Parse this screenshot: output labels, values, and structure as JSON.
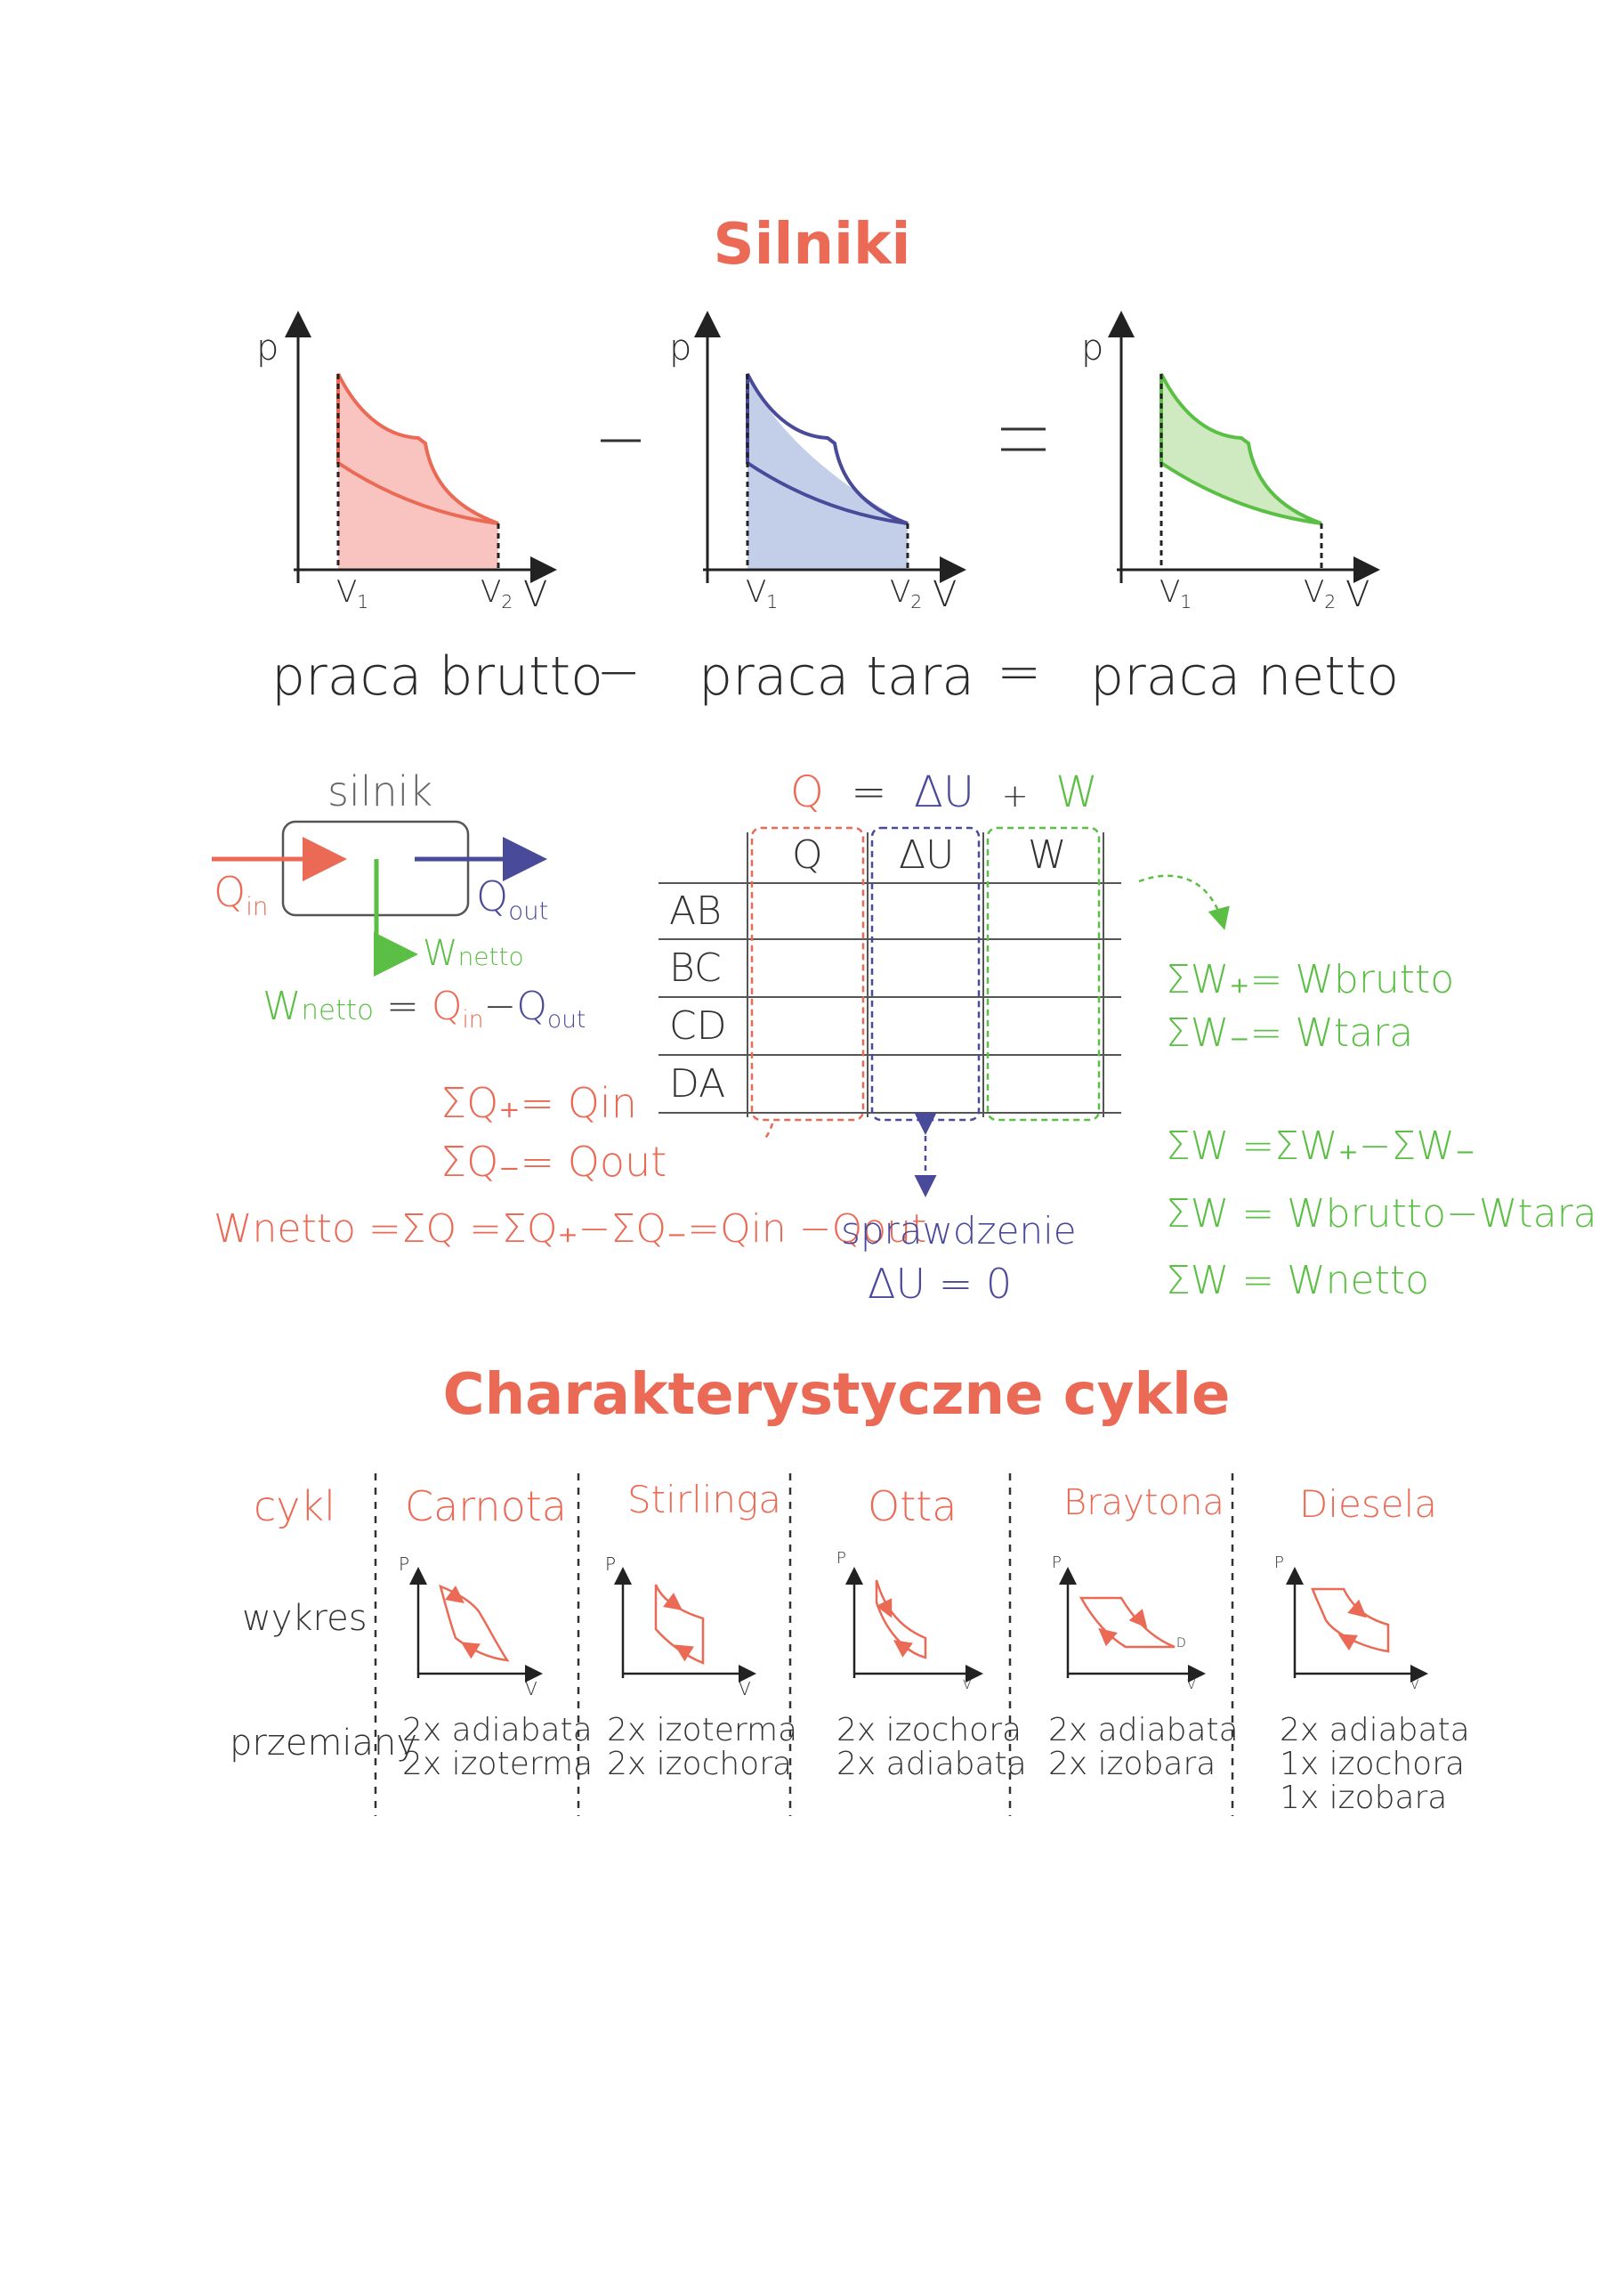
{
  "title": "Silniki",
  "pv_graphs": {
    "axis_p": "p",
    "axis_v": "V",
    "v1": "V",
    "v1_sub": "1",
    "v2": "V",
    "v2_sub": "2"
  },
  "work_equation": {
    "brutto": "praca brutto",
    "minus": "−",
    "tara": "praca tara",
    "equals": "=",
    "netto": "praca netto"
  },
  "engine_box": {
    "label": "silnik",
    "q_in": "Q",
    "q_in_sub": "in",
    "q_out": "Q",
    "q_out_sub": "out",
    "w_netto": "W",
    "w_netto_sub": "netto",
    "formula_w": "W",
    "formula_w_sub": "netto",
    "formula_eq": " = ",
    "formula_qin": "Q",
    "formula_qin_sub": "in",
    "formula_minus": "−",
    "formula_qout": "Q",
    "formula_qout_sub": "out"
  },
  "first_law": {
    "q": "Q",
    "eq": "=",
    "du": "ΔU",
    "plus": "+",
    "w": "W"
  },
  "process_table": {
    "headers": [
      "Q",
      "ΔU",
      "W"
    ],
    "rows": [
      "AB",
      "BC",
      "CD",
      "DA"
    ]
  },
  "heat_sums": {
    "line1": "ΣQ₊= Qin",
    "line2": "ΣQ₋= Qout",
    "line3": "Wnetto =ΣQ =ΣQ₊−ΣQ₋=Qin −Qout"
  },
  "check": {
    "label": "sprawdzenie",
    "value": "ΔU = 0"
  },
  "work_sums": {
    "line1": "ΣW₊= Wbrutto",
    "line2": "ΣW₋= Wtara",
    "line3": "ΣW =ΣW₊−ΣW₋",
    "line4": "ΣW = Wbrutto−Wtara",
    "line5": "ΣW = Wnetto"
  },
  "cycles_title": "Charakterystyczne cykle",
  "cycles_table": {
    "row_labels": {
      "cycle": "cykl",
      "graph": "wykres",
      "transformations": "przemiany"
    },
    "graph_axis_p": "P",
    "graph_axis_v": "V",
    "brayton_point": "D",
    "cycles": [
      {
        "name": "Carnota",
        "lines": [
          "2x adiabata",
          "2x izoterma"
        ]
      },
      {
        "name": "Stirlinga",
        "lines": [
          "2x izoterma",
          "2x izochora"
        ]
      },
      {
        "name": "Otta",
        "lines": [
          "2x izochora",
          "2x adiabata"
        ]
      },
      {
        "name": "Braytona",
        "lines": [
          "2x adiabata",
          "2x izobara"
        ]
      },
      {
        "name": "Diesela",
        "lines": [
          "2x adiabata",
          "1x izochora",
          "1x izobara"
        ]
      }
    ]
  },
  "colors": {
    "red": "#ea6a55",
    "blue": "#4a4a9a",
    "green": "#5cbf45",
    "red_fill": "#f9c3c0",
    "blue_fill": "#c3cfe9",
    "green_fill": "#cfe9c0"
  }
}
